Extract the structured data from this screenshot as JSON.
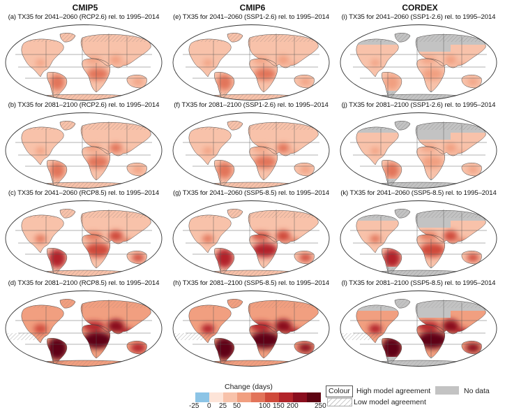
{
  "columns": [
    {
      "name": "CMIP5"
    },
    {
      "name": "CMIP6"
    },
    {
      "name": "CORDEX"
    }
  ],
  "panels": [
    {
      "label": "(a) TX35 for 2041–2060 (RCP2.6) rel. to 1995–2014",
      "col": 0,
      "row": 0,
      "intensity": 0.28,
      "dataset": "cmip"
    },
    {
      "label": "(b) TX35 for 2081–2100 (RCP2.6) rel. to 1995–2014",
      "col": 0,
      "row": 1,
      "intensity": 0.32,
      "dataset": "cmip"
    },
    {
      "label": "(c) TX35 for 2041–2060 (RCP8.5) rel. to 1995–2014",
      "col": 0,
      "row": 2,
      "intensity": 0.55,
      "dataset": "cmip"
    },
    {
      "label": "(d) TX35 for 2081–2100 (RCP8.5) rel. to 1995–2014",
      "col": 0,
      "row": 3,
      "intensity": 0.9,
      "dataset": "cmip"
    },
    {
      "label": "(e) TX35 for 2041–2060 (SSP1-2.6) rel. to 1995–2014",
      "col": 1,
      "row": 0,
      "intensity": 0.3,
      "dataset": "cmip"
    },
    {
      "label": "(f) TX35 for 2081–2100 (SSP1-2.6) rel. to 1995–2014",
      "col": 1,
      "row": 1,
      "intensity": 0.34,
      "dataset": "cmip"
    },
    {
      "label": "(g) TX35 for 2041–2060 (SSP5-8.5) rel. to 1995–2014",
      "col": 1,
      "row": 2,
      "intensity": 0.58,
      "dataset": "cmip"
    },
    {
      "label": "(h) TX35 for 2081–2100 (SSP5-8.5) rel. to 1995–2014",
      "col": 1,
      "row": 3,
      "intensity": 0.92,
      "dataset": "cmip"
    },
    {
      "label": "(i) TX35 for 2041–2060 (SSP1-2.6) rel. to 1995–2014",
      "col": 2,
      "row": 0,
      "intensity": 0.24,
      "dataset": "cordex"
    },
    {
      "label": "(j) TX35 for 2081–2100 (SSP1-2.6) rel. to 1995–2014",
      "col": 2,
      "row": 1,
      "intensity": 0.26,
      "dataset": "cordex"
    },
    {
      "label": "(k) TX35 for 2041–2060 (SSP5-8.5) rel. to 1995–2014",
      "col": 2,
      "row": 2,
      "intensity": 0.55,
      "dataset": "cordex"
    },
    {
      "label": "(l) TX35 for 2081–2100 (SSP5-8.5) rel. to 1995–2014",
      "col": 2,
      "row": 3,
      "intensity": 0.92,
      "dataset": "cordex"
    }
  ],
  "legend": {
    "title": "Change (days)",
    "ticks": [
      "-25",
      "0",
      "25",
      "50",
      "100",
      "150",
      "200",
      "250"
    ],
    "colors": [
      "#8cc4e6",
      "#fde4d8",
      "#f8c2aa",
      "#f19f80",
      "#e2745a",
      "#cf4a3a",
      "#b2242a",
      "#8a0e1e",
      "#5e0412"
    ],
    "colour_box": "Colour",
    "high_agreement": "High model agreement",
    "low_agreement": "Low model agreement",
    "no_data": "No data"
  },
  "colors": {
    "no_data": "#c3c3c3",
    "ocean": "#ffffff",
    "outline": "#444444"
  }
}
